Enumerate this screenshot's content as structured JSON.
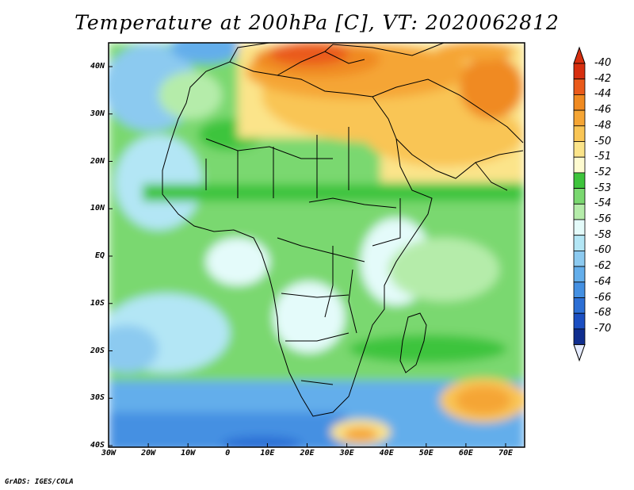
{
  "title": "Temperature at 200hPa [C], VT: 2020062812",
  "credit": "GrADS: IGES/COLA",
  "lat_ticks": [
    "40N",
    "30N",
    "20N",
    "10N",
    "EQ",
    "10S",
    "20S",
    "30S",
    "40S"
  ],
  "lon_ticks": [
    "30W",
    "20W",
    "10W",
    "0",
    "10E",
    "20E",
    "30E",
    "40E",
    "50E",
    "60E",
    "70E"
  ],
  "colorbar": [
    {
      "label": "-40",
      "color": "#d72f0f"
    },
    {
      "label": "-42",
      "color": "#ea5a1a"
    },
    {
      "label": "-44",
      "color": "#f08a20"
    },
    {
      "label": "-46",
      "color": "#f5a534"
    },
    {
      "label": "-48",
      "color": "#f9c555"
    },
    {
      "label": "-50",
      "color": "#fbe48a"
    },
    {
      "label": "-51",
      "color": "#fefbd0"
    },
    {
      "label": "-52",
      "color": "#3ec43c"
    },
    {
      "label": "-53",
      "color": "#7ad870"
    },
    {
      "label": "-54",
      "color": "#b5ecaa"
    },
    {
      "label": "-56",
      "color": "#e4fbfa"
    },
    {
      "label": "-58",
      "color": "#b3e6f5"
    },
    {
      "label": "-60",
      "color": "#8ccaf0"
    },
    {
      "label": "-62",
      "color": "#63aeeb"
    },
    {
      "label": "-64",
      "color": "#4490e2"
    },
    {
      "label": "-66",
      "color": "#2c6fd5"
    },
    {
      "label": "-68",
      "color": "#1b4fc2"
    },
    {
      "label": "-70",
      "color": "#102e8f"
    },
    {
      "label": "",
      "color": "#e6ecff"
    }
  ]
}
